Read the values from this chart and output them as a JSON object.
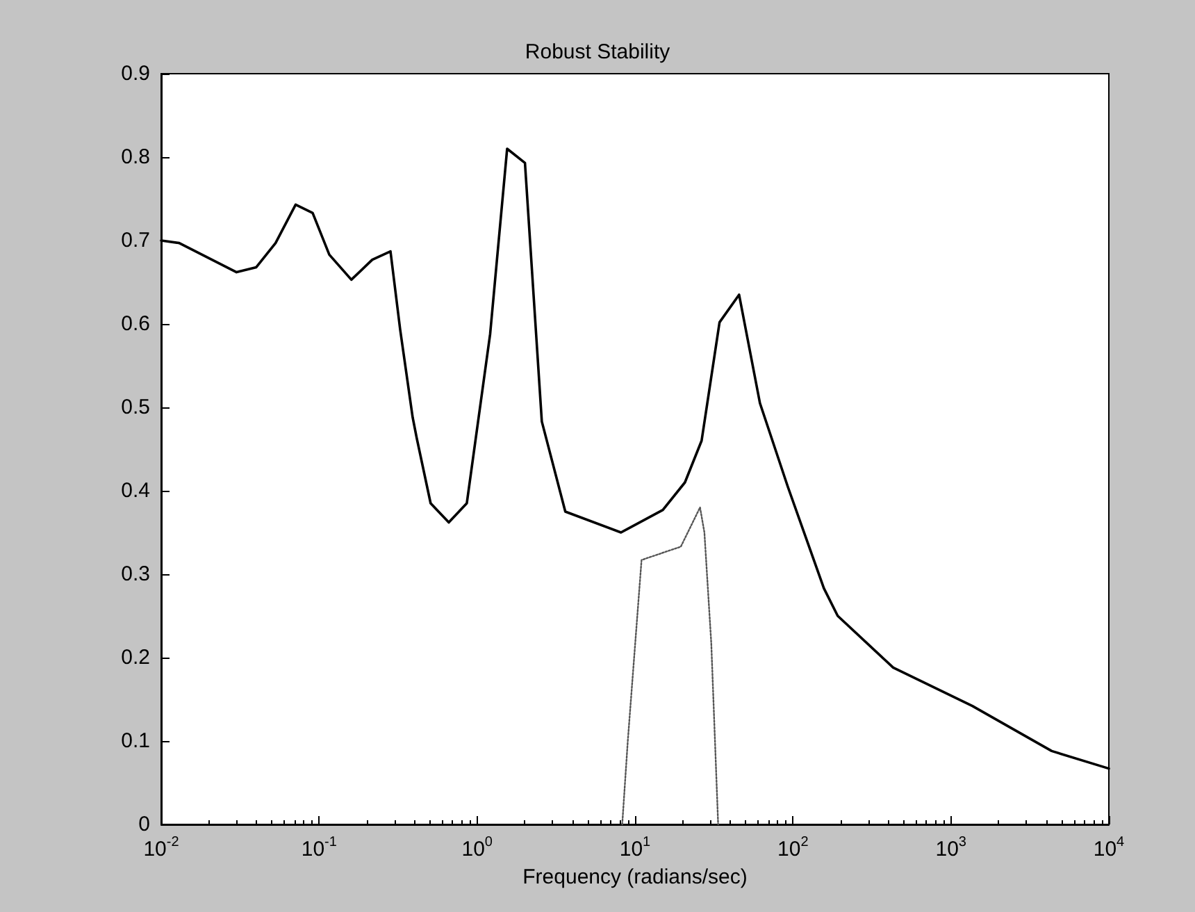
{
  "chart_data": {
    "type": "line",
    "title": "Robust Stability",
    "xlabel": "Frequency (radians/sec)",
    "log": "x",
    "grid": false,
    "marker": "none",
    "xlim": [
      0.01,
      10000
    ],
    "xticks": [
      {
        "value": 0.01,
        "label": "10$^{-2}$"
      },
      {
        "value": 0.1,
        "label": "10$^{-1}$"
      },
      {
        "value": 1,
        "label": "10$^{0}$"
      },
      {
        "value": 10,
        "label": "10$^{1}$"
      },
      {
        "value": 100,
        "label": "10$^{2}$"
      },
      {
        "value": 1000,
        "label": "10$^{3}$"
      },
      {
        "value": 10000,
        "label": "10$^{4}$"
      }
    ],
    "ylim": [
      0,
      0.9
    ],
    "yticks": [
      0,
      0.1,
      0.2,
      0.3,
      0.4,
      0.5,
      0.6,
      0.7,
      0.8,
      0.9
    ],
    "series": [
      {
        "color": "#000000",
        "line_style": "solid",
        "x": [
          0.01,
          0.013,
          0.03,
          0.04,
          0.053,
          0.071,
          0.091,
          0.116,
          0.16,
          0.217,
          0.283,
          0.326,
          0.391,
          0.415,
          0.508,
          0.662,
          0.861,
          1.21,
          1.55,
          2.01,
          2.57,
          3.62,
          8.15,
          15,
          20.7,
          26.4,
          34.3,
          45.6,
          61.8,
          92.7,
          157,
          192,
          431,
          1368,
          4345,
          10000
        ],
        "values": [
          0.7,
          0.697,
          0.662,
          0.668,
          0.697,
          0.743,
          0.733,
          0.683,
          0.653,
          0.677,
          0.687,
          0.593,
          0.488,
          0.463,
          0.385,
          0.362,
          0.385,
          0.588,
          0.81,
          0.793,
          0.483,
          0.375,
          0.35,
          0.377,
          0.41,
          0.46,
          0.602,
          0.635,
          0.505,
          0.405,
          0.283,
          0.25,
          0.188,
          0.142,
          0.088,
          0.067
        ]
      },
      {
        "color": "#555555",
        "line_style": "dotted",
        "x": [
          8.3,
          9.0,
          11.0,
          19.5,
          25.8,
          27.5,
          30.4,
          33.6
        ],
        "values": [
          0,
          0.1,
          0.317,
          0.333,
          0.38,
          0.35,
          0.217,
          0
        ]
      }
    ]
  }
}
